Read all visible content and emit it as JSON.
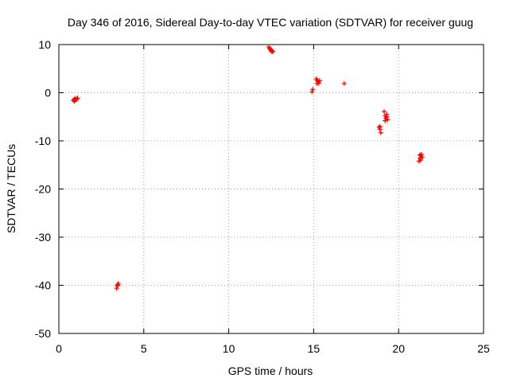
{
  "chart_data": {
    "type": "scatter",
    "title": "Day 346 of 2016, Sidereal Day-to-day VTEC variation (SDTVAR) for receiver guug",
    "xlabel": "GPS time / hours",
    "ylabel": "SDTVAR / TECUs",
    "xlim": [
      0,
      25
    ],
    "ylim": [
      -50,
      10
    ],
    "xticks": [
      0,
      5,
      10,
      15,
      20,
      25
    ],
    "yticks": [
      10,
      0,
      -10,
      -20,
      -30,
      -40,
      -50
    ],
    "grid": true,
    "marker": "+",
    "color": "#ff0000",
    "series": [
      {
        "name": "SDTVAR",
        "points": [
          [
            0.85,
            -1.6
          ],
          [
            0.9,
            -1.4
          ],
          [
            0.95,
            -1.2
          ],
          [
            1.0,
            -1.5
          ],
          [
            1.05,
            -1.3
          ],
          [
            1.1,
            -1.1
          ],
          [
            0.92,
            -1.8
          ],
          [
            3.4,
            -40.6
          ],
          [
            3.45,
            -40.1
          ],
          [
            3.5,
            -39.6
          ],
          [
            3.45,
            -39.9
          ],
          [
            12.35,
            9.5
          ],
          [
            12.4,
            9.2
          ],
          [
            12.45,
            9.0
          ],
          [
            12.5,
            8.9
          ],
          [
            12.55,
            8.7
          ],
          [
            12.6,
            8.5
          ],
          [
            12.5,
            8.6
          ],
          [
            14.9,
            0.2
          ],
          [
            14.95,
            0.7
          ],
          [
            15.15,
            2.9
          ],
          [
            15.2,
            2.6
          ],
          [
            15.25,
            2.3
          ],
          [
            15.3,
            2.0
          ],
          [
            15.35,
            2.5
          ],
          [
            15.2,
            1.9
          ],
          [
            16.8,
            1.9
          ],
          [
            18.85,
            -7.2
          ],
          [
            18.9,
            -7.6
          ],
          [
            18.95,
            -8.3
          ],
          [
            18.9,
            -7.0
          ],
          [
            19.15,
            -3.9
          ],
          [
            19.2,
            -4.8
          ],
          [
            19.25,
            -5.3
          ],
          [
            19.3,
            -5.0
          ],
          [
            19.35,
            -5.6
          ],
          [
            19.2,
            -5.8
          ],
          [
            19.3,
            -4.5
          ],
          [
            21.2,
            -14.2
          ],
          [
            21.25,
            -13.6
          ],
          [
            21.3,
            -13.1
          ],
          [
            21.35,
            -12.8
          ],
          [
            21.4,
            -13.4
          ],
          [
            21.3,
            -14.0
          ],
          [
            21.25,
            -12.9
          ]
        ]
      }
    ]
  }
}
